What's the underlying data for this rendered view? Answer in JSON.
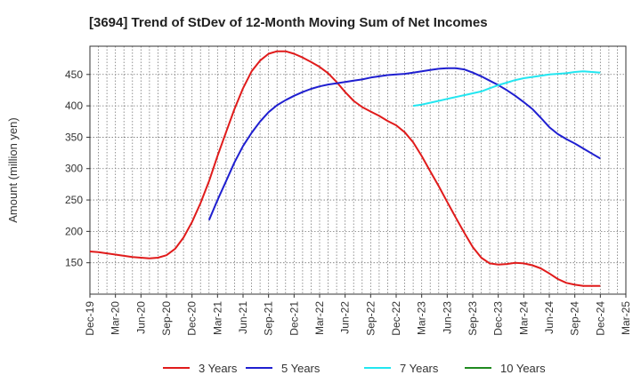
{
  "chart_data": {
    "type": "line",
    "title": "[3694]  Trend of StDev of 12-Month Moving Sum of Net Incomes",
    "xlabel": "",
    "ylabel": "Amount (million yen)",
    "ylim": [
      100,
      495
    ],
    "yticks": [
      150,
      200,
      250,
      300,
      350,
      400,
      450
    ],
    "xlim": [
      "2019-12",
      "2025-03"
    ],
    "xticks": [
      "Dec-19",
      "Mar-20",
      "Jun-20",
      "Sep-20",
      "Dec-20",
      "Mar-21",
      "Jun-21",
      "Sep-21",
      "Dec-21",
      "Mar-22",
      "Jun-22",
      "Sep-22",
      "Dec-22",
      "Mar-23",
      "Jun-23",
      "Sep-23",
      "Dec-23",
      "Mar-24",
      "Jun-24",
      "Sep-24",
      "Dec-24",
      "Mar-25"
    ],
    "grid": true,
    "legend_position": "bottom",
    "series": [
      {
        "name": "3 Years",
        "color": "#e01b1b",
        "points": [
          [
            "2019-12",
            168
          ],
          [
            "2020-01",
            167
          ],
          [
            "2020-02",
            165
          ],
          [
            "2020-03",
            163
          ],
          [
            "2020-04",
            161
          ],
          [
            "2020-05",
            159
          ],
          [
            "2020-06",
            158
          ],
          [
            "2020-07",
            157
          ],
          [
            "2020-08",
            158
          ],
          [
            "2020-09",
            162
          ],
          [
            "2020-10",
            172
          ],
          [
            "2020-11",
            190
          ],
          [
            "2020-12",
            215
          ],
          [
            "2021-01",
            245
          ],
          [
            "2021-02",
            280
          ],
          [
            "2021-03",
            320
          ],
          [
            "2021-04",
            358
          ],
          [
            "2021-05",
            395
          ],
          [
            "2021-06",
            428
          ],
          [
            "2021-07",
            455
          ],
          [
            "2021-08",
            472
          ],
          [
            "2021-09",
            483
          ],
          [
            "2021-10",
            487
          ],
          [
            "2021-11",
            487
          ],
          [
            "2021-12",
            483
          ],
          [
            "2022-01",
            477
          ],
          [
            "2022-02",
            470
          ],
          [
            "2022-03",
            462
          ],
          [
            "2022-04",
            452
          ],
          [
            "2022-05",
            438
          ],
          [
            "2022-06",
            422
          ],
          [
            "2022-07",
            408
          ],
          [
            "2022-08",
            398
          ],
          [
            "2022-09",
            391
          ],
          [
            "2022-10",
            384
          ],
          [
            "2022-11",
            376
          ],
          [
            "2022-12",
            369
          ],
          [
            "2023-01",
            358
          ],
          [
            "2023-02",
            342
          ],
          [
            "2023-03",
            320
          ],
          [
            "2023-04",
            296
          ],
          [
            "2023-05",
            272
          ],
          [
            "2023-06",
            247
          ],
          [
            "2023-07",
            222
          ],
          [
            "2023-08",
            198
          ],
          [
            "2023-09",
            175
          ],
          [
            "2023-10",
            158
          ],
          [
            "2023-11",
            149
          ],
          [
            "2023-12",
            147
          ],
          [
            "2024-01",
            148
          ],
          [
            "2024-02",
            150
          ],
          [
            "2024-03",
            149
          ],
          [
            "2024-04",
            146
          ],
          [
            "2024-05",
            141
          ],
          [
            "2024-06",
            133
          ],
          [
            "2024-07",
            124
          ],
          [
            "2024-08",
            118
          ],
          [
            "2024-09",
            115
          ],
          [
            "2024-10",
            113
          ],
          [
            "2024-11",
            113
          ],
          [
            "2024-12",
            113
          ]
        ]
      },
      {
        "name": "5 Years",
        "color": "#1f1fd0",
        "points": [
          [
            "2021-02",
            218
          ],
          [
            "2021-03",
            250
          ],
          [
            "2021-04",
            280
          ],
          [
            "2021-05",
            310
          ],
          [
            "2021-06",
            336
          ],
          [
            "2021-07",
            357
          ],
          [
            "2021-08",
            375
          ],
          [
            "2021-09",
            390
          ],
          [
            "2021-10",
            401
          ],
          [
            "2021-11",
            409
          ],
          [
            "2021-12",
            416
          ],
          [
            "2022-01",
            422
          ],
          [
            "2022-02",
            427
          ],
          [
            "2022-03",
            431
          ],
          [
            "2022-04",
            434
          ],
          [
            "2022-05",
            436
          ],
          [
            "2022-06",
            438
          ],
          [
            "2022-07",
            440
          ],
          [
            "2022-08",
            442
          ],
          [
            "2022-09",
            445
          ],
          [
            "2022-10",
            447
          ],
          [
            "2022-11",
            449
          ],
          [
            "2022-12",
            450
          ],
          [
            "2023-01",
            451
          ],
          [
            "2023-02",
            453
          ],
          [
            "2023-03",
            455
          ],
          [
            "2023-04",
            457
          ],
          [
            "2023-05",
            459
          ],
          [
            "2023-06",
            460
          ],
          [
            "2023-07",
            460
          ],
          [
            "2023-08",
            458
          ],
          [
            "2023-09",
            453
          ],
          [
            "2023-10",
            447
          ],
          [
            "2023-11",
            440
          ],
          [
            "2023-12",
            433
          ],
          [
            "2024-01",
            425
          ],
          [
            "2024-02",
            416
          ],
          [
            "2024-03",
            406
          ],
          [
            "2024-04",
            395
          ],
          [
            "2024-05",
            381
          ],
          [
            "2024-06",
            366
          ],
          [
            "2024-07",
            355
          ],
          [
            "2024-08",
            347
          ],
          [
            "2024-09",
            340
          ],
          [
            "2024-10",
            332
          ],
          [
            "2024-11",
            324
          ],
          [
            "2024-12",
            316
          ]
        ]
      },
      {
        "name": "7 Years",
        "color": "#22e6f0",
        "points": [
          [
            "2023-02",
            400
          ],
          [
            "2023-03",
            402
          ],
          [
            "2023-04",
            405
          ],
          [
            "2023-05",
            408
          ],
          [
            "2023-06",
            411
          ],
          [
            "2023-07",
            414
          ],
          [
            "2023-08",
            417
          ],
          [
            "2023-09",
            420
          ],
          [
            "2023-10",
            423
          ],
          [
            "2023-11",
            428
          ],
          [
            "2023-12",
            433
          ],
          [
            "2024-01",
            437
          ],
          [
            "2024-02",
            441
          ],
          [
            "2024-03",
            444
          ],
          [
            "2024-04",
            446
          ],
          [
            "2024-05",
            448
          ],
          [
            "2024-06",
            450
          ],
          [
            "2024-07",
            451
          ],
          [
            "2024-08",
            452
          ],
          [
            "2024-09",
            454
          ],
          [
            "2024-10",
            455
          ],
          [
            "2024-11",
            454
          ],
          [
            "2024-12",
            453
          ]
        ]
      },
      {
        "name": "10 Years",
        "color": "#1f8a1f",
        "points": []
      }
    ]
  }
}
